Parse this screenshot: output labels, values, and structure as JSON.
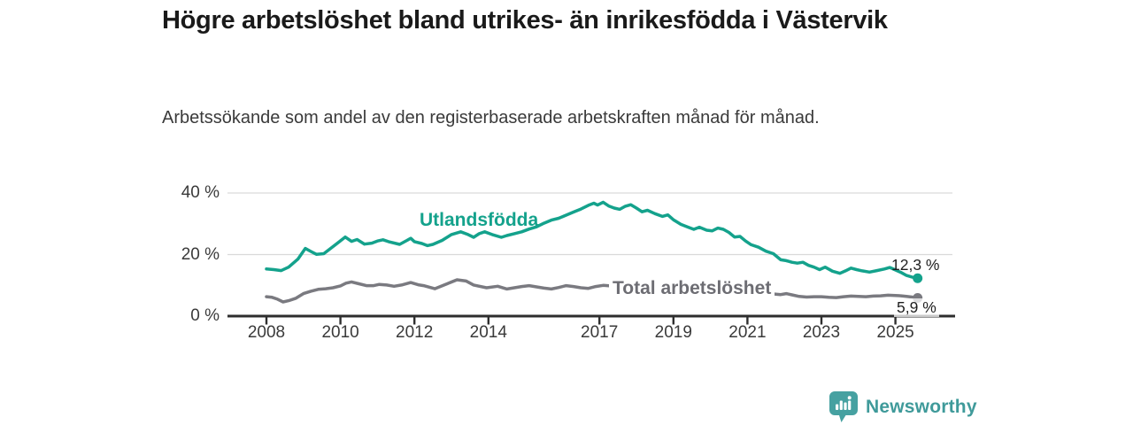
{
  "header": {
    "title": "Högre arbetslöshet bland utrikes- än inrikesfödda i Västervik",
    "subtitle": "Arbetssökande som andel av den registerbaserade arbetskraften månad för månad."
  },
  "footer": {
    "brand": "Newsworthy"
  },
  "colors": {
    "accent_teal": "#14a28c",
    "line_gray": "#7a7a80",
    "label_gray": "#6d6d73",
    "axis": "#2e2e2e",
    "grid": "#d9d9d9",
    "text_dark": "#1f1f1f",
    "logo_teal": "#46a1a1"
  },
  "chart_data": {
    "type": "line",
    "title": "Högre arbetslöshet bland utrikes- än inrikesfödda i Västervik",
    "subtitle": "Arbetssökande som andel av den registerbaserade arbetskraften månad för månad.",
    "xlabel": "",
    "ylabel": "",
    "ylim": [
      0,
      40
    ],
    "xlim": [
      2007.9,
      2025.9
    ],
    "grid": "horizontal",
    "legend_position": "inline-labels",
    "y_ticks": [
      {
        "value": 0,
        "label": "0 %"
      },
      {
        "value": 20,
        "label": "20 %"
      },
      {
        "value": 40,
        "label": "40 %"
      }
    ],
    "x_ticks": [
      {
        "value": 2008,
        "label": "2008"
      },
      {
        "value": 2010,
        "label": "2010"
      },
      {
        "value": 2012,
        "label": "2012"
      },
      {
        "value": 2014,
        "label": "2014"
      },
      {
        "value": 2017,
        "label": "2017"
      },
      {
        "value": 2019,
        "label": "2019"
      },
      {
        "value": 2021,
        "label": "2021"
      },
      {
        "value": 2023,
        "label": "2023"
      },
      {
        "value": 2025,
        "label": "2025"
      }
    ],
    "series": [
      {
        "name": "Utlandsfödda",
        "color": "#14a28c",
        "end_label": "12,3 %",
        "end_value": 12.3,
        "points": [
          [
            2008.0,
            15.3
          ],
          [
            2008.2,
            15.1
          ],
          [
            2008.4,
            14.8
          ],
          [
            2008.6,
            15.9
          ],
          [
            2008.85,
            18.5
          ],
          [
            2009.05,
            22.0
          ],
          [
            2009.2,
            21.0
          ],
          [
            2009.35,
            20.1
          ],
          [
            2009.55,
            20.3
          ],
          [
            2009.8,
            22.6
          ],
          [
            2009.95,
            24.0
          ],
          [
            2010.13,
            25.7
          ],
          [
            2010.3,
            24.3
          ],
          [
            2010.45,
            24.9
          ],
          [
            2010.65,
            23.4
          ],
          [
            2010.85,
            23.7
          ],
          [
            2011.0,
            24.4
          ],
          [
            2011.15,
            24.8
          ],
          [
            2011.3,
            24.2
          ],
          [
            2011.6,
            23.3
          ],
          [
            2011.8,
            24.6
          ],
          [
            2011.9,
            25.3
          ],
          [
            2012.0,
            24.2
          ],
          [
            2012.2,
            23.6
          ],
          [
            2012.35,
            22.9
          ],
          [
            2012.5,
            23.3
          ],
          [
            2012.75,
            24.6
          ],
          [
            2013.0,
            26.5
          ],
          [
            2013.25,
            27.4
          ],
          [
            2013.45,
            26.5
          ],
          [
            2013.6,
            25.6
          ],
          [
            2013.75,
            26.8
          ],
          [
            2013.9,
            27.4
          ],
          [
            2014.1,
            26.5
          ],
          [
            2014.35,
            25.6
          ],
          [
            2014.5,
            26.2
          ],
          [
            2014.7,
            26.8
          ],
          [
            2014.9,
            27.4
          ],
          [
            2015.1,
            28.3
          ],
          [
            2015.3,
            29.0
          ],
          [
            2015.5,
            30.2
          ],
          [
            2015.7,
            31.2
          ],
          [
            2015.9,
            31.8
          ],
          [
            2016.1,
            32.8
          ],
          [
            2016.3,
            33.8
          ],
          [
            2016.5,
            34.8
          ],
          [
            2016.7,
            36.0
          ],
          [
            2016.85,
            36.7
          ],
          [
            2016.95,
            36.1
          ],
          [
            2017.1,
            37.0
          ],
          [
            2017.25,
            35.8
          ],
          [
            2017.4,
            35.1
          ],
          [
            2017.55,
            34.7
          ],
          [
            2017.7,
            35.7
          ],
          [
            2017.85,
            36.2
          ],
          [
            2018.0,
            35.1
          ],
          [
            2018.15,
            33.9
          ],
          [
            2018.3,
            34.4
          ],
          [
            2018.5,
            33.3
          ],
          [
            2018.7,
            32.4
          ],
          [
            2018.85,
            32.9
          ],
          [
            2019.0,
            31.3
          ],
          [
            2019.2,
            29.8
          ],
          [
            2019.4,
            28.9
          ],
          [
            2019.55,
            28.2
          ],
          [
            2019.7,
            28.9
          ],
          [
            2019.9,
            27.9
          ],
          [
            2020.05,
            27.7
          ],
          [
            2020.2,
            28.6
          ],
          [
            2020.35,
            28.2
          ],
          [
            2020.5,
            27.2
          ],
          [
            2020.65,
            25.7
          ],
          [
            2020.8,
            25.9
          ],
          [
            2020.95,
            24.4
          ],
          [
            2021.1,
            23.2
          ],
          [
            2021.3,
            22.4
          ],
          [
            2021.5,
            21.1
          ],
          [
            2021.7,
            20.3
          ],
          [
            2021.9,
            18.3
          ],
          [
            2022.05,
            18.0
          ],
          [
            2022.2,
            17.5
          ],
          [
            2022.35,
            17.2
          ],
          [
            2022.5,
            17.5
          ],
          [
            2022.65,
            16.5
          ],
          [
            2022.8,
            15.9
          ],
          [
            2022.95,
            15.1
          ],
          [
            2023.1,
            15.9
          ],
          [
            2023.3,
            14.6
          ],
          [
            2023.5,
            13.9
          ],
          [
            2023.65,
            14.7
          ],
          [
            2023.8,
            15.6
          ],
          [
            2023.95,
            15.1
          ],
          [
            2024.1,
            14.7
          ],
          [
            2024.3,
            14.3
          ],
          [
            2024.5,
            14.8
          ],
          [
            2024.7,
            15.3
          ],
          [
            2024.85,
            15.8
          ],
          [
            2025.0,
            15.0
          ],
          [
            2025.15,
            14.2
          ],
          [
            2025.3,
            13.2
          ],
          [
            2025.45,
            12.7
          ],
          [
            2025.6,
            12.3
          ]
        ]
      },
      {
        "name": "Total arbetslöshet",
        "color": "#7a7a80",
        "end_label": "5,9 %",
        "end_value": 5.9,
        "points": [
          [
            2008.0,
            6.3
          ],
          [
            2008.15,
            6.1
          ],
          [
            2008.3,
            5.5
          ],
          [
            2008.45,
            4.6
          ],
          [
            2008.6,
            5.0
          ],
          [
            2008.8,
            5.8
          ],
          [
            2009.0,
            7.3
          ],
          [
            2009.2,
            8.1
          ],
          [
            2009.4,
            8.7
          ],
          [
            2009.6,
            8.9
          ],
          [
            2009.8,
            9.2
          ],
          [
            2010.0,
            9.8
          ],
          [
            2010.15,
            10.7
          ],
          [
            2010.3,
            11.1
          ],
          [
            2010.5,
            10.5
          ],
          [
            2010.7,
            9.9
          ],
          [
            2010.9,
            9.9
          ],
          [
            2011.05,
            10.3
          ],
          [
            2011.25,
            10.1
          ],
          [
            2011.45,
            9.7
          ],
          [
            2011.65,
            10.1
          ],
          [
            2011.9,
            10.9
          ],
          [
            2012.1,
            10.2
          ],
          [
            2012.25,
            9.9
          ],
          [
            2012.55,
            8.9
          ],
          [
            2012.9,
            10.6
          ],
          [
            2013.15,
            11.8
          ],
          [
            2013.4,
            11.4
          ],
          [
            2013.6,
            10.1
          ],
          [
            2013.95,
            9.2
          ],
          [
            2014.25,
            9.7
          ],
          [
            2014.5,
            8.8
          ],
          [
            2014.7,
            9.2
          ],
          [
            2014.9,
            9.6
          ],
          [
            2015.1,
            9.9
          ],
          [
            2015.3,
            9.5
          ],
          [
            2015.5,
            9.1
          ],
          [
            2015.7,
            8.8
          ],
          [
            2015.9,
            9.3
          ],
          [
            2016.1,
            9.9
          ],
          [
            2016.3,
            9.6
          ],
          [
            2016.5,
            9.2
          ],
          [
            2016.7,
            9.0
          ],
          [
            2016.9,
            9.6
          ],
          [
            2017.1,
            10.0
          ],
          [
            2017.3,
            9.8
          ],
          [
            2017.5,
            9.7
          ],
          [
            2017.7,
            9.9
          ],
          [
            2017.9,
            10.3
          ],
          [
            2018.1,
            10.6
          ],
          [
            2018.3,
            10.3
          ],
          [
            2018.5,
            9.9
          ],
          [
            2018.7,
            9.6
          ],
          [
            2018.9,
            9.8
          ],
          [
            2019.1,
            9.4
          ],
          [
            2019.3,
            9.0
          ],
          [
            2019.5,
            8.7
          ],
          [
            2019.7,
            8.9
          ],
          [
            2019.9,
            8.6
          ],
          [
            2020.1,
            9.0
          ],
          [
            2020.3,
            9.7
          ],
          [
            2020.5,
            9.3
          ],
          [
            2020.7,
            8.9
          ],
          [
            2020.9,
            8.6
          ],
          [
            2021.1,
            8.3
          ],
          [
            2021.3,
            7.9
          ],
          [
            2021.5,
            7.5
          ],
          [
            2021.7,
            7.2
          ],
          [
            2021.9,
            7.0
          ],
          [
            2022.05,
            7.3
          ],
          [
            2022.2,
            6.9
          ],
          [
            2022.4,
            6.4
          ],
          [
            2022.6,
            6.2
          ],
          [
            2022.8,
            6.3
          ],
          [
            2023.0,
            6.3
          ],
          [
            2023.2,
            6.1
          ],
          [
            2023.4,
            6.0
          ],
          [
            2023.6,
            6.3
          ],
          [
            2023.8,
            6.5
          ],
          [
            2024.0,
            6.4
          ],
          [
            2024.2,
            6.3
          ],
          [
            2024.4,
            6.5
          ],
          [
            2024.6,
            6.6
          ],
          [
            2024.8,
            6.8
          ],
          [
            2025.0,
            6.7
          ],
          [
            2025.15,
            6.6
          ],
          [
            2025.3,
            6.4
          ],
          [
            2025.45,
            6.2
          ],
          [
            2025.6,
            5.9
          ]
        ]
      }
    ]
  }
}
